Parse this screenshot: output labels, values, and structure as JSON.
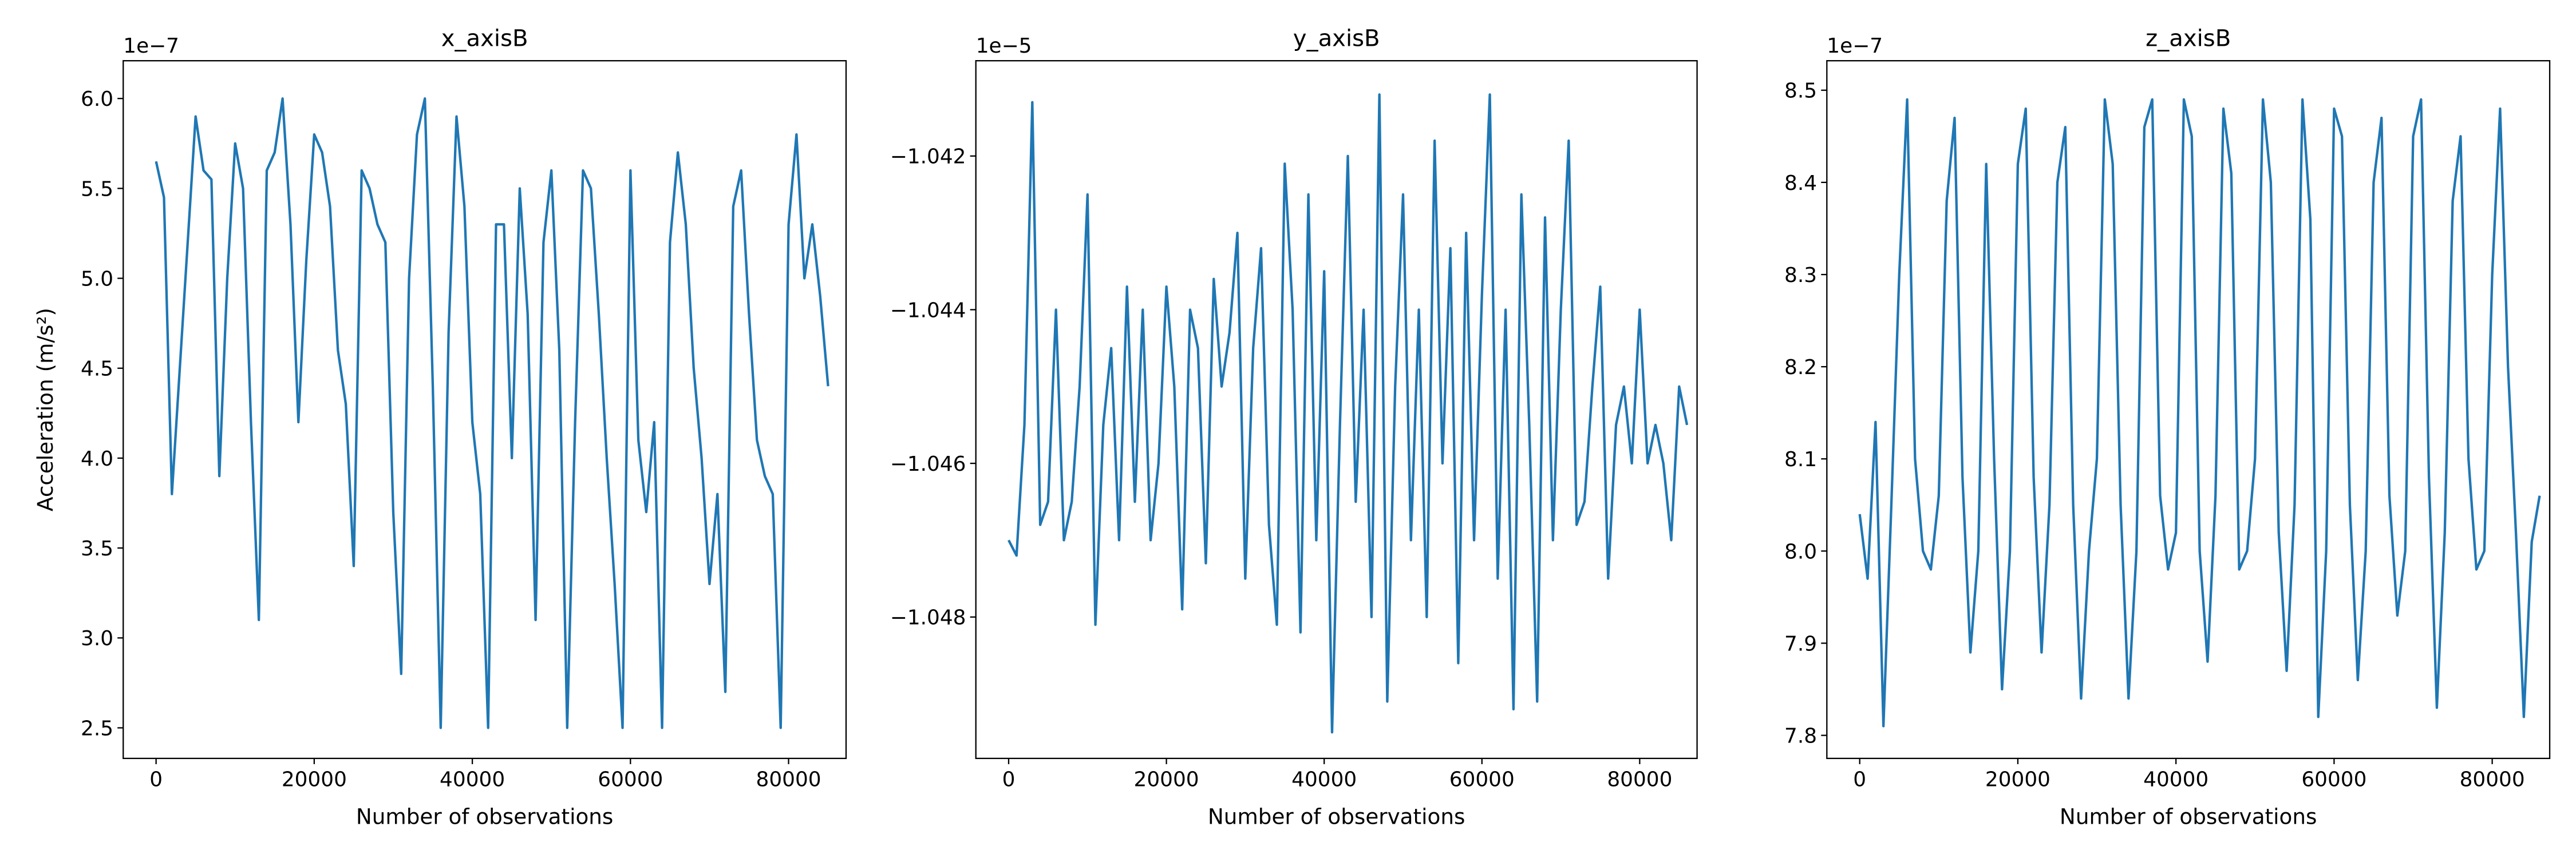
{
  "chart_data": [
    {
      "type": "line",
      "title": "x_axisB",
      "xlabel": "Number of observations",
      "ylabel": "Acceleration (m/s²)",
      "offset_label": "1e−7",
      "color": "#1f77b4",
      "x": [
        0,
        1000,
        2000,
        3000,
        4000,
        5000,
        6000,
        7000,
        8000,
        9000,
        10000,
        11000,
        12000,
        13000,
        14000,
        15000,
        16000,
        17000,
        18000,
        19000,
        20000,
        21000,
        22000,
        23000,
        24000,
        25000,
        26000,
        27000,
        28000,
        29000,
        30000,
        31000,
        32000,
        33000,
        34000,
        35000,
        36000,
        37000,
        38000,
        39000,
        40000,
        41000,
        42000,
        43000,
        44000,
        45000,
        46000,
        47000,
        48000,
        49000,
        50000,
        51000,
        52000,
        53000,
        54000,
        55000,
        56000,
        57000,
        58000,
        59000,
        60000,
        61000,
        62000,
        63000,
        64000,
        65000,
        66000,
        67000,
        68000,
        69000,
        70000,
        71000,
        72000,
        73000,
        74000,
        75000,
        76000,
        77000,
        78000,
        79000,
        80000,
        81000,
        82000,
        83000,
        84000,
        85000
      ],
      "values": [
        5.65,
        5.45,
        3.8,
        4.5,
        5.2,
        5.9,
        5.6,
        5.55,
        3.9,
        5.0,
        5.75,
        5.5,
        4.2,
        3.1,
        5.6,
        5.7,
        6.0,
        5.3,
        4.2,
        5.1,
        5.8,
        5.7,
        5.4,
        4.6,
        4.3,
        3.4,
        5.6,
        5.5,
        5.3,
        5.2,
        3.7,
        2.8,
        5.0,
        5.8,
        6.0,
        4.4,
        2.5,
        4.7,
        5.9,
        5.4,
        4.2,
        3.8,
        2.5,
        5.3,
        5.3,
        4.0,
        5.5,
        4.8,
        3.1,
        5.2,
        5.6,
        4.6,
        2.5,
        4.2,
        5.6,
        5.5,
        4.8,
        4.0,
        3.3,
        2.5,
        5.6,
        4.1,
        3.7,
        4.2,
        2.5,
        5.2,
        5.7,
        5.3,
        4.5,
        4.0,
        3.3,
        3.8,
        2.7,
        5.4,
        5.6,
        4.8,
        4.1,
        3.9,
        3.8,
        2.5,
        5.3,
        5.8,
        5.0,
        5.3,
        4.9,
        4.4
      ],
      "xlim": [
        -4156,
        87273
      ],
      "ylim": [
        2.33,
        6.21
      ],
      "xticks": [
        0,
        20000,
        40000,
        60000,
        80000
      ],
      "yticks": [
        2.5,
        {
          "value": 3,
          "label": "3.0"
        },
        3.5,
        {
          "value": 4,
          "label": "4.0"
        },
        4.5,
        {
          "value": 5,
          "label": "5.0"
        },
        5.5,
        {
          "value": 6,
          "label": "6.0"
        }
      ]
    },
    {
      "type": "line",
      "title": "y_axisB",
      "xlabel": "Number of observations",
      "offset_label": "1e−5",
      "color": "#1f77b4",
      "x": [
        0,
        1000,
        2000,
        3000,
        4000,
        5000,
        6000,
        7000,
        8000,
        9000,
        10000,
        11000,
        12000,
        13000,
        14000,
        15000,
        16000,
        17000,
        18000,
        19000,
        20000,
        21000,
        22000,
        23000,
        24000,
        25000,
        26000,
        27000,
        28000,
        29000,
        30000,
        31000,
        32000,
        33000,
        34000,
        35000,
        36000,
        37000,
        38000,
        39000,
        40000,
        41000,
        42000,
        43000,
        44000,
        45000,
        46000,
        47000,
        48000,
        49000,
        50000,
        51000,
        52000,
        53000,
        54000,
        55000,
        56000,
        57000,
        58000,
        59000,
        60000,
        61000,
        62000,
        63000,
        64000,
        65000,
        66000,
        67000,
        68000,
        69000,
        70000,
        71000,
        72000,
        73000,
        74000,
        75000,
        76000,
        77000,
        78000,
        79000,
        80000,
        81000,
        82000,
        83000,
        84000,
        85000,
        86000
      ],
      "values": [
        -1.047,
        -1.0472,
        -1.0455,
        -1.0413,
        -1.0468,
        -1.0465,
        -1.044,
        -1.047,
        -1.0465,
        -1.045,
        -1.0425,
        -1.0481,
        -1.0455,
        -1.0445,
        -1.047,
        -1.0437,
        -1.0465,
        -1.044,
        -1.047,
        -1.046,
        -1.0437,
        -1.045,
        -1.0479,
        -1.044,
        -1.0445,
        -1.0473,
        -1.0436,
        -1.045,
        -1.0443,
        -1.043,
        -1.0475,
        -1.0445,
        -1.0432,
        -1.0468,
        -1.0481,
        -1.0421,
        -1.044,
        -1.0482,
        -1.0425,
        -1.047,
        -1.0435,
        -1.0495,
        -1.0455,
        -1.042,
        -1.0465,
        -1.044,
        -1.048,
        -1.0412,
        -1.0491,
        -1.045,
        -1.0425,
        -1.047,
        -1.044,
        -1.048,
        -1.0418,
        -1.046,
        -1.0432,
        -1.0486,
        -1.043,
        -1.047,
        -1.0438,
        -1.0412,
        -1.0475,
        -1.044,
        -1.0492,
        -1.0425,
        -1.0455,
        -1.0491,
        -1.0428,
        -1.047,
        -1.044,
        -1.0418,
        -1.0468,
        -1.0465,
        -1.045,
        -1.0437,
        -1.0475,
        -1.0455,
        -1.045,
        -1.046,
        -1.044,
        -1.046,
        -1.0455,
        -1.046,
        -1.047,
        -1.045,
        -1.0455
      ],
      "xlim": [
        -4156,
        87273
      ],
      "ylim": [
        -1.04984,
        -1.04076
      ],
      "xticks": [
        0,
        20000,
        40000,
        60000,
        80000
      ],
      "yticks": [
        {
          "value": -1.048,
          "label": "−1.048"
        },
        {
          "value": -1.046,
          "label": "−1.046"
        },
        {
          "value": -1.044,
          "label": "−1.044"
        },
        {
          "value": -1.042,
          "label": "−1.042"
        }
      ]
    },
    {
      "type": "line",
      "title": "z_axisB",
      "xlabel": "Number of observations",
      "offset_label": "1e−7",
      "color": "#1f77b4",
      "x": [
        0,
        1000,
        2000,
        3000,
        4000,
        5000,
        6000,
        7000,
        8000,
        9000,
        10000,
        11000,
        12000,
        13000,
        14000,
        15000,
        16000,
        17000,
        18000,
        19000,
        20000,
        21000,
        22000,
        23000,
        24000,
        25000,
        26000,
        27000,
        28000,
        29000,
        30000,
        31000,
        32000,
        33000,
        34000,
        35000,
        36000,
        37000,
        38000,
        39000,
        40000,
        41000,
        42000,
        43000,
        44000,
        45000,
        46000,
        47000,
        48000,
        49000,
        50000,
        51000,
        52000,
        53000,
        54000,
        55000,
        56000,
        57000,
        58000,
        59000,
        60000,
        61000,
        62000,
        63000,
        64000,
        65000,
        66000,
        67000,
        68000,
        69000,
        70000,
        71000,
        72000,
        73000,
        74000,
        75000,
        76000,
        77000,
        78000,
        79000,
        80000,
        81000,
        82000,
        83000,
        84000,
        85000,
        86000
      ],
      "values": [
        8.04,
        7.97,
        8.14,
        7.81,
        8.05,
        8.3,
        8.49,
        8.1,
        8.0,
        7.98,
        8.06,
        8.38,
        8.47,
        8.08,
        7.89,
        8.0,
        8.42,
        8.1,
        7.85,
        8.0,
        8.42,
        8.48,
        8.08,
        7.89,
        8.05,
        8.4,
        8.46,
        8.05,
        7.84,
        8.0,
        8.1,
        8.49,
        8.42,
        8.05,
        7.84,
        8.0,
        8.46,
        8.49,
        8.06,
        7.98,
        8.02,
        8.49,
        8.45,
        8.0,
        7.88,
        8.06,
        8.48,
        8.41,
        7.98,
        8.0,
        8.1,
        8.49,
        8.4,
        8.02,
        7.87,
        8.05,
        8.49,
        8.36,
        7.82,
        8.0,
        8.48,
        8.45,
        8.05,
        7.86,
        8.0,
        8.4,
        8.47,
        8.06,
        7.93,
        8.0,
        8.45,
        8.49,
        8.08,
        7.83,
        8.02,
        8.38,
        8.45,
        8.1,
        7.98,
        8.0,
        8.3,
        8.48,
        8.2,
        8.02,
        7.82,
        8.01,
        8.06
      ],
      "xlim": [
        -4156,
        87273
      ],
      "ylim": [
        7.775,
        8.532
      ],
      "xticks": [
        0,
        20000,
        40000,
        60000,
        80000
      ],
      "yticks": [
        7.8,
        7.9,
        {
          "value": 8,
          "label": "8.0"
        },
        8.1,
        8.2,
        8.3,
        8.4,
        8.5
      ]
    }
  ]
}
